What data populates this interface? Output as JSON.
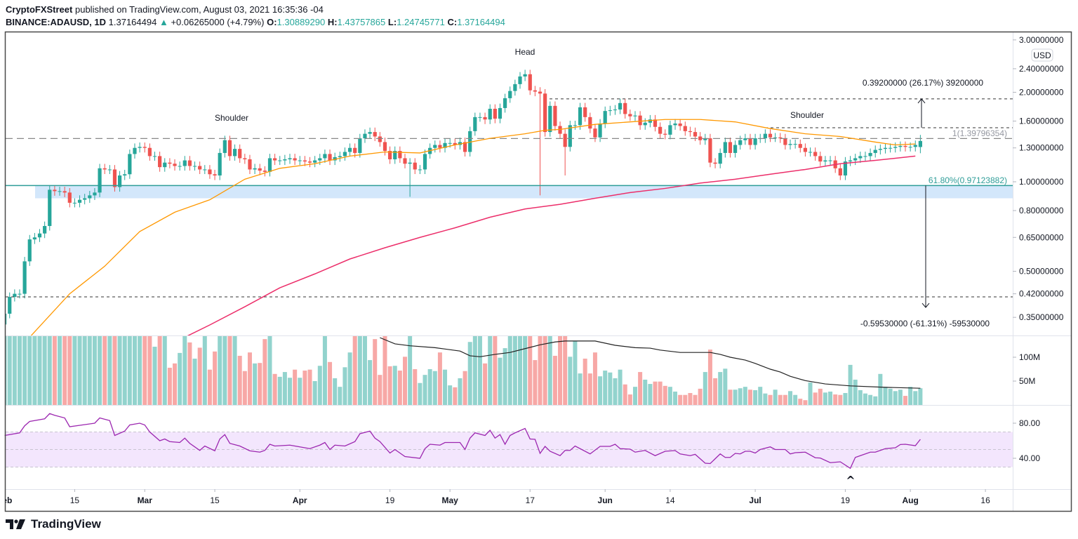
{
  "header": {
    "publisher": "CryptoFXStreet",
    "published_text": "published on TradingView.com, August 03, 2021 16:35:36 -04",
    "symbol": "BINANCE:ADAUSD, 1D",
    "last": "1.37164494",
    "change": "+0.06265000 (+4.79%)",
    "change_icon": "triangle-up-icon",
    "o_label": "O:",
    "o": "1.30889290",
    "h_label": "H:",
    "h": "1.43757865",
    "l_label": "L:",
    "l": "1.24745771",
    "c_label": "C:",
    "c": "1.37164494"
  },
  "colors": {
    "up": "#26a69a",
    "down": "#ef5350",
    "vol_up": "#92d3cd",
    "vol_down": "#f7a8a6",
    "ma50": "#ff9800",
    "ma200": "#ec2e6a",
    "vol_ma": "#222222",
    "rsi": "#9c27b0",
    "rsi_band": "#f3e6fd",
    "zone": "#d3e7fb",
    "fib": "#2e9d98"
  },
  "chart_data": {
    "type": "candlestick",
    "scale": "log",
    "currency": "USD",
    "first_date": "Feb 1",
    "closes": [
      0.36,
      0.41,
      0.42,
      0.42,
      0.54,
      0.64,
      0.65,
      0.67,
      0.71,
      0.94,
      0.93,
      0.93,
      0.92,
      0.85,
      0.85,
      0.87,
      0.88,
      0.9,
      0.92,
      1.11,
      1.1,
      1.1,
      0.96,
      1.05,
      1.06,
      1.24,
      1.3,
      1.31,
      1.3,
      1.22,
      1.22,
      1.12,
      1.16,
      1.15,
      1.13,
      1.13,
      1.18,
      1.13,
      1.13,
      1.1,
      1.1,
      1.06,
      1.05,
      1.25,
      1.38,
      1.22,
      1.29,
      1.2,
      1.19,
      1.1,
      1.11,
      1.09,
      1.08,
      1.2,
      1.18,
      1.18,
      1.19,
      1.2,
      1.18,
      1.18,
      1.17,
      1.16,
      1.18,
      1.2,
      1.24,
      1.18,
      1.21,
      1.22,
      1.26,
      1.3,
      1.25,
      1.4,
      1.45,
      1.47,
      1.42,
      1.36,
      1.27,
      1.19,
      1.27,
      1.2,
      1.15,
      1.16,
      1.1,
      1.1,
      1.24,
      1.3,
      1.33,
      1.3,
      1.35,
      1.35,
      1.33,
      1.36,
      1.26,
      1.48,
      1.65,
      1.65,
      1.62,
      1.76,
      1.63,
      1.77,
      1.91,
      2.02,
      2.13,
      2.26,
      2.3,
      2.03,
      2.01,
      1.98,
      1.47,
      1.8,
      1.54,
      1.45,
      1.31,
      1.55,
      1.55,
      1.78,
      1.65,
      1.51,
      1.41,
      1.57,
      1.73,
      1.74,
      1.75,
      1.84,
      1.69,
      1.66,
      1.67,
      1.55,
      1.58,
      1.62,
      1.53,
      1.45,
      1.44,
      1.55,
      1.57,
      1.54,
      1.48,
      1.47,
      1.42,
      1.38,
      1.4,
      1.16,
      1.15,
      1.25,
      1.36,
      1.25,
      1.33,
      1.38,
      1.4,
      1.33,
      1.4,
      1.4,
      1.45,
      1.41,
      1.41,
      1.4,
      1.33,
      1.34,
      1.34,
      1.3,
      1.26,
      1.26,
      1.22,
      1.17,
      1.18,
      1.18,
      1.11,
      1.05,
      1.17,
      1.18,
      1.2,
      1.22,
      1.22,
      1.25,
      1.28,
      1.29,
      1.3,
      1.3,
      1.31,
      1.32,
      1.31,
      1.31,
      1.33,
      1.37
    ],
    "last_candle": {
      "open": 1.3088929,
      "high": 1.43757865,
      "low": 1.24745771,
      "close": 1.37164494
    },
    "wick_lows": [
      {
        "date": "Apr 23",
        "low": 0.89
      },
      {
        "date": "May 19",
        "low": 0.9
      },
      {
        "date": "May 24",
        "low": 1.05
      }
    ],
    "ma_fast": [
      [
        "Feb 6",
        0.3
      ],
      [
        "Feb 14",
        0.42
      ],
      [
        "Feb 21",
        0.52
      ],
      [
        "Feb 28",
        0.68
      ],
      [
        "Mar 7",
        0.79
      ],
      [
        "Mar 14",
        0.87
      ],
      [
        "Mar 21",
        1.02
      ],
      [
        "Mar 28",
        1.11
      ],
      [
        "Apr 4",
        1.15
      ],
      [
        "Apr 11",
        1.22
      ],
      [
        "Apr 18",
        1.26
      ],
      [
        "Apr 25",
        1.25
      ],
      [
        "May 2",
        1.33
      ],
      [
        "May 9",
        1.4
      ],
      [
        "May 16",
        1.45
      ],
      [
        "May 20",
        1.49
      ],
      [
        "May 23",
        1.5
      ],
      [
        "May 30",
        1.56
      ],
      [
        "Jun 6",
        1.59
      ],
      [
        "Jun 13",
        1.62
      ],
      [
        "Jun 20",
        1.62
      ],
      [
        "Jun 27",
        1.59
      ],
      [
        "Jul 4",
        1.51
      ],
      [
        "Jul 11",
        1.45
      ],
      [
        "Jul 18",
        1.42
      ],
      [
        "Jul 25",
        1.36
      ],
      [
        "Jul 29",
        1.33
      ],
      [
        "Aug 2",
        1.34
      ]
    ],
    "ma_slow": [
      [
        "Mar 9",
        0.3
      ],
      [
        "Mar 14",
        0.33
      ],
      [
        "Mar 21",
        0.38
      ],
      [
        "Mar 28",
        0.44
      ],
      [
        "Apr 4",
        0.49
      ],
      [
        "Apr 11",
        0.55
      ],
      [
        "Apr 18",
        0.6
      ],
      [
        "Apr 25",
        0.65
      ],
      [
        "May 2",
        0.7
      ],
      [
        "May 9",
        0.76
      ],
      [
        "May 16",
        0.81
      ],
      [
        "May 23",
        0.84
      ],
      [
        "May 30",
        0.88
      ],
      [
        "Jun 6",
        0.92
      ],
      [
        "Jun 13",
        0.95
      ],
      [
        "Jun 20",
        0.99
      ],
      [
        "Jun 27",
        1.02
      ],
      [
        "Jul 4",
        1.06
      ],
      [
        "Jul 11",
        1.1
      ],
      [
        "Jul 18",
        1.15
      ],
      [
        "Jul 25",
        1.18
      ],
      [
        "Aug 2",
        1.22
      ]
    ],
    "volume_m": [
      150,
      150,
      150,
      150,
      150,
      150,
      150,
      150,
      150,
      150,
      150,
      150,
      150,
      150,
      150,
      150,
      150,
      150,
      150,
      150,
      150,
      150,
      150,
      150,
      150,
      150,
      150,
      150,
      150,
      150,
      122,
      150,
      150,
      78,
      87,
      109,
      150,
      131,
      97,
      120,
      150,
      74,
      112,
      150,
      150,
      150,
      150,
      103,
      71,
      110,
      87,
      88,
      138,
      150,
      65,
      59,
      69,
      57,
      74,
      57,
      72,
      74,
      50,
      82,
      150,
      90,
      56,
      38,
      79,
      110,
      150,
      150,
      150,
      94,
      138,
      63,
      150,
      81,
      82,
      72,
      101,
      150,
      75,
      46,
      63,
      75,
      71,
      110,
      74,
      41,
      37,
      56,
      71,
      132,
      150,
      150,
      87,
      150,
      150,
      99,
      119,
      150,
      150,
      150,
      150,
      150,
      94,
      150,
      150,
      150,
      103,
      150,
      150,
      101,
      134,
      66,
      97,
      66,
      110,
      60,
      72,
      68,
      56,
      74,
      43,
      22,
      38,
      69,
      53,
      44,
      49,
      49,
      40,
      38,
      28,
      21,
      21,
      25,
      21,
      34,
      69,
      116,
      56,
      69,
      76,
      32,
      32,
      35,
      38,
      32,
      31,
      38,
      24,
      21,
      32,
      21,
      21,
      29,
      21,
      13,
      10,
      47,
      26,
      34,
      26,
      28,
      22,
      21,
      25,
      84,
      53,
      31,
      24,
      21,
      18,
      65,
      38,
      34,
      29,
      32,
      19,
      38,
      29,
      35
    ],
    "volume_ma_m": [
      [
        "Apr 17",
        141
      ],
      [
        "Apr 20",
        128
      ],
      [
        "Apr 23",
        124
      ],
      [
        "Apr 28",
        120
      ],
      [
        "May 3",
        113
      ],
      [
        "May 5",
        103
      ],
      [
        "May 7",
        101
      ],
      [
        "May 10",
        106
      ],
      [
        "May 13",
        110
      ],
      [
        "May 16",
        118
      ],
      [
        "May 19",
        126
      ],
      [
        "May 22",
        132
      ],
      [
        "May 24",
        134
      ],
      [
        "May 30",
        134
      ],
      [
        "Jun 3",
        125
      ],
      [
        "Jun 7",
        120
      ],
      [
        "Jun 10",
        119
      ],
      [
        "Jun 12",
        115
      ],
      [
        "Jun 16",
        110
      ],
      [
        "Jun 22",
        110
      ],
      [
        "Jun 24",
        106
      ],
      [
        "Jun 26",
        100
      ],
      [
        "Jun 29",
        94
      ],
      [
        "Jul 1",
        87
      ],
      [
        "Jul 4",
        75
      ],
      [
        "Jul 6",
        69
      ],
      [
        "Jul 8",
        60
      ],
      [
        "Jul 11",
        51
      ],
      [
        "Jul 15",
        44
      ],
      [
        "Jul 20",
        40
      ],
      [
        "Jul 27",
        37
      ],
      [
        "Aug 3",
        35
      ]
    ],
    "rsi": [
      [
        "Feb 1",
        66
      ],
      [
        "Feb 4",
        69
      ],
      [
        "Feb 5",
        77
      ],
      [
        "Feb 6",
        82
      ],
      [
        "Feb 9",
        85
      ],
      [
        "Feb 10",
        91
      ],
      [
        "Feb 11",
        89
      ],
      [
        "Feb 13",
        86
      ],
      [
        "Feb 14",
        76
      ],
      [
        "Feb 19",
        80
      ],
      [
        "Feb 20",
        86
      ],
      [
        "Feb 22",
        83
      ],
      [
        "Feb 23",
        66
      ],
      [
        "Feb 25",
        71
      ],
      [
        "Feb 26",
        78
      ],
      [
        "Feb 28",
        80
      ],
      [
        "Mar 1",
        78
      ],
      [
        "Mar 2",
        70
      ],
      [
        "Mar 4",
        60
      ],
      [
        "Mar 5",
        62
      ],
      [
        "Mar 6",
        59
      ],
      [
        "Mar 8",
        58
      ],
      [
        "Mar 9",
        63
      ],
      [
        "Mar 10",
        57
      ],
      [
        "Mar 12",
        49
      ],
      [
        "Mar 13",
        54
      ],
      [
        "Mar 15",
        48.5
      ],
      [
        "Mar 16",
        62
      ],
      [
        "Mar 17",
        67
      ],
      [
        "Mar 18",
        57
      ],
      [
        "Mar 20",
        54
      ],
      [
        "Mar 22",
        48.5
      ],
      [
        "Mar 24",
        47
      ],
      [
        "Mar 25",
        49
      ],
      [
        "Mar 26",
        56
      ],
      [
        "Mar 27",
        54
      ],
      [
        "Mar 30",
        55
      ],
      [
        "Apr 1",
        53
      ],
      [
        "Apr 3",
        51
      ],
      [
        "Apr 5",
        55
      ],
      [
        "Apr 6",
        58
      ],
      [
        "Apr 7",
        50
      ],
      [
        "Apr 8",
        55
      ],
      [
        "Apr 10",
        54
      ],
      [
        "Apr 12",
        59
      ],
      [
        "Apr 13",
        68
      ],
      [
        "Apr 15",
        71
      ],
      [
        "Apr 16",
        63
      ],
      [
        "Apr 17",
        59
      ],
      [
        "Apr 19",
        46
      ],
      [
        "Apr 20",
        50
      ],
      [
        "Apr 22",
        42
      ],
      [
        "Apr 25",
        40
      ],
      [
        "Apr 26",
        51
      ],
      [
        "Apr 27",
        56
      ],
      [
        "Apr 29",
        55
      ],
      [
        "Apr 30",
        58
      ],
      [
        "May 2",
        58
      ],
      [
        "May 3",
        58
      ],
      [
        "May 4",
        50
      ],
      [
        "May 5",
        63
      ],
      [
        "May 6",
        69
      ],
      [
        "May 8",
        66
      ],
      [
        "May 9",
        72
      ],
      [
        "May 10",
        63
      ],
      [
        "May 11",
        67
      ],
      [
        "May 12",
        56
      ],
      [
        "May 13",
        66
      ],
      [
        "May 14",
        69
      ],
      [
        "May 16",
        74
      ],
      [
        "May 17",
        62
      ],
      [
        "May 18",
        61.6
      ],
      [
        "May 19",
        45.6
      ],
      [
        "May 20",
        53.6
      ],
      [
        "May 21",
        48
      ],
      [
        "May 23",
        43
      ],
      [
        "May 24",
        49
      ],
      [
        "May 25",
        49
      ],
      [
        "May 26",
        54
      ],
      [
        "May 29",
        45
      ],
      [
        "May 31",
        53.6
      ],
      [
        "Jun 2",
        53.6
      ],
      [
        "Jun 3",
        56
      ],
      [
        "Jun 4",
        51
      ],
      [
        "Jun 6",
        50.4
      ],
      [
        "Jun 7",
        47
      ],
      [
        "Jun 9",
        49
      ],
      [
        "Jun 11",
        43
      ],
      [
        "Jun 13",
        48
      ],
      [
        "Jun 15",
        48.8
      ],
      [
        "Jun 16",
        45
      ],
      [
        "Jun 18",
        43
      ],
      [
        "Jun 19",
        44.5
      ],
      [
        "Jun 21",
        34.4
      ],
      [
        "Jun 22",
        34
      ],
      [
        "Jun 24",
        45
      ],
      [
        "Jun 25",
        41
      ],
      [
        "Jun 26",
        41
      ],
      [
        "Jun 27",
        45.6
      ],
      [
        "Jun 28",
        45
      ],
      [
        "Jun 29",
        48
      ],
      [
        "Jun 30",
        48
      ],
      [
        "Jul 1",
        46
      ],
      [
        "Jul 2",
        50
      ],
      [
        "Jul 4",
        53
      ],
      [
        "Jul 5",
        50
      ],
      [
        "Jul 7",
        50
      ],
      [
        "Jul 8",
        45
      ],
      [
        "Jul 9",
        46.4
      ],
      [
        "Jul 11",
        47
      ],
      [
        "Jul 13",
        40.6
      ],
      [
        "Jul 14",
        40.3
      ],
      [
        "Jul 16",
        35
      ],
      [
        "Jul 18",
        36
      ],
      [
        "Jul 20",
        28.6
      ],
      [
        "Jul 21",
        41
      ],
      [
        "Jul 22",
        43
      ],
      [
        "Jul 24",
        47
      ],
      [
        "Jul 25",
        47
      ],
      [
        "Jul 27",
        51
      ],
      [
        "Jul 29",
        52
      ],
      [
        "Jul 30",
        55.7
      ],
      [
        "Jul 31",
        56
      ],
      [
        "Aug 2",
        54.4
      ],
      [
        "Aug 3",
        61.6
      ]
    ],
    "rsi_bands": [
      70,
      50,
      30
    ],
    "price_ticks": [
      [
        "3.00000000",
        3.0
      ],
      [
        "2.40000000",
        2.4
      ],
      [
        "2.00000000",
        2.0
      ],
      [
        "1.60000000",
        1.6
      ],
      [
        "1.30000000",
        1.3
      ],
      [
        "1.00000000",
        1.0
      ],
      [
        "0.80000000",
        0.8
      ],
      [
        "0.65000000",
        0.65
      ],
      [
        "0.50000000",
        0.5
      ],
      [
        "0.42000000",
        0.42
      ],
      [
        "0.35000000",
        0.35
      ]
    ],
    "volume_ticks": [
      [
        "100M",
        100
      ],
      [
        "50M",
        50
      ]
    ],
    "rsi_ticks": [
      [
        "80.00",
        80
      ],
      [
        "40.00",
        40
      ]
    ],
    "time_ticks": [
      [
        "Feb",
        "Feb 1"
      ],
      [
        "15",
        "Feb 15"
      ],
      [
        "Mar",
        "Mar 1"
      ],
      [
        "15",
        "Mar 15"
      ],
      [
        "Apr",
        "Apr 1"
      ],
      [
        "19",
        "Apr 19"
      ],
      [
        "May",
        "May 1"
      ],
      [
        "17",
        "May 17"
      ],
      [
        "Jun",
        "Jun 1"
      ],
      [
        "14",
        "Jun 14"
      ],
      [
        "Jul",
        "Jul 1"
      ],
      [
        "19",
        "Jul 19"
      ],
      [
        "Aug",
        "Aug 1"
      ],
      [
        "16",
        "Aug 16"
      ]
    ],
    "levels": {
      "neckline": 1.39796354,
      "neckline_label": "1(1.39796354)",
      "target_up": 1.9,
      "breakout": 1.52,
      "fib_618": 0.97123882,
      "fib_label": "61.80%(0.97123882)",
      "zone_low": 0.88,
      "target_down": 0.41
    },
    "annotations": {
      "head": "Head",
      "left_shoulder": "Shoulder",
      "right_shoulder": "Shoulder",
      "measure_up": "0.39200000 (26.17%) 39200000",
      "measure_down": "-0.59530000 (-61.31%) -59530000",
      "rsi_marker_icon": "caret-up-icon"
    }
  },
  "footer": {
    "logo_text": "TradingView",
    "logo_icon": "tradingview-logo-icon"
  }
}
